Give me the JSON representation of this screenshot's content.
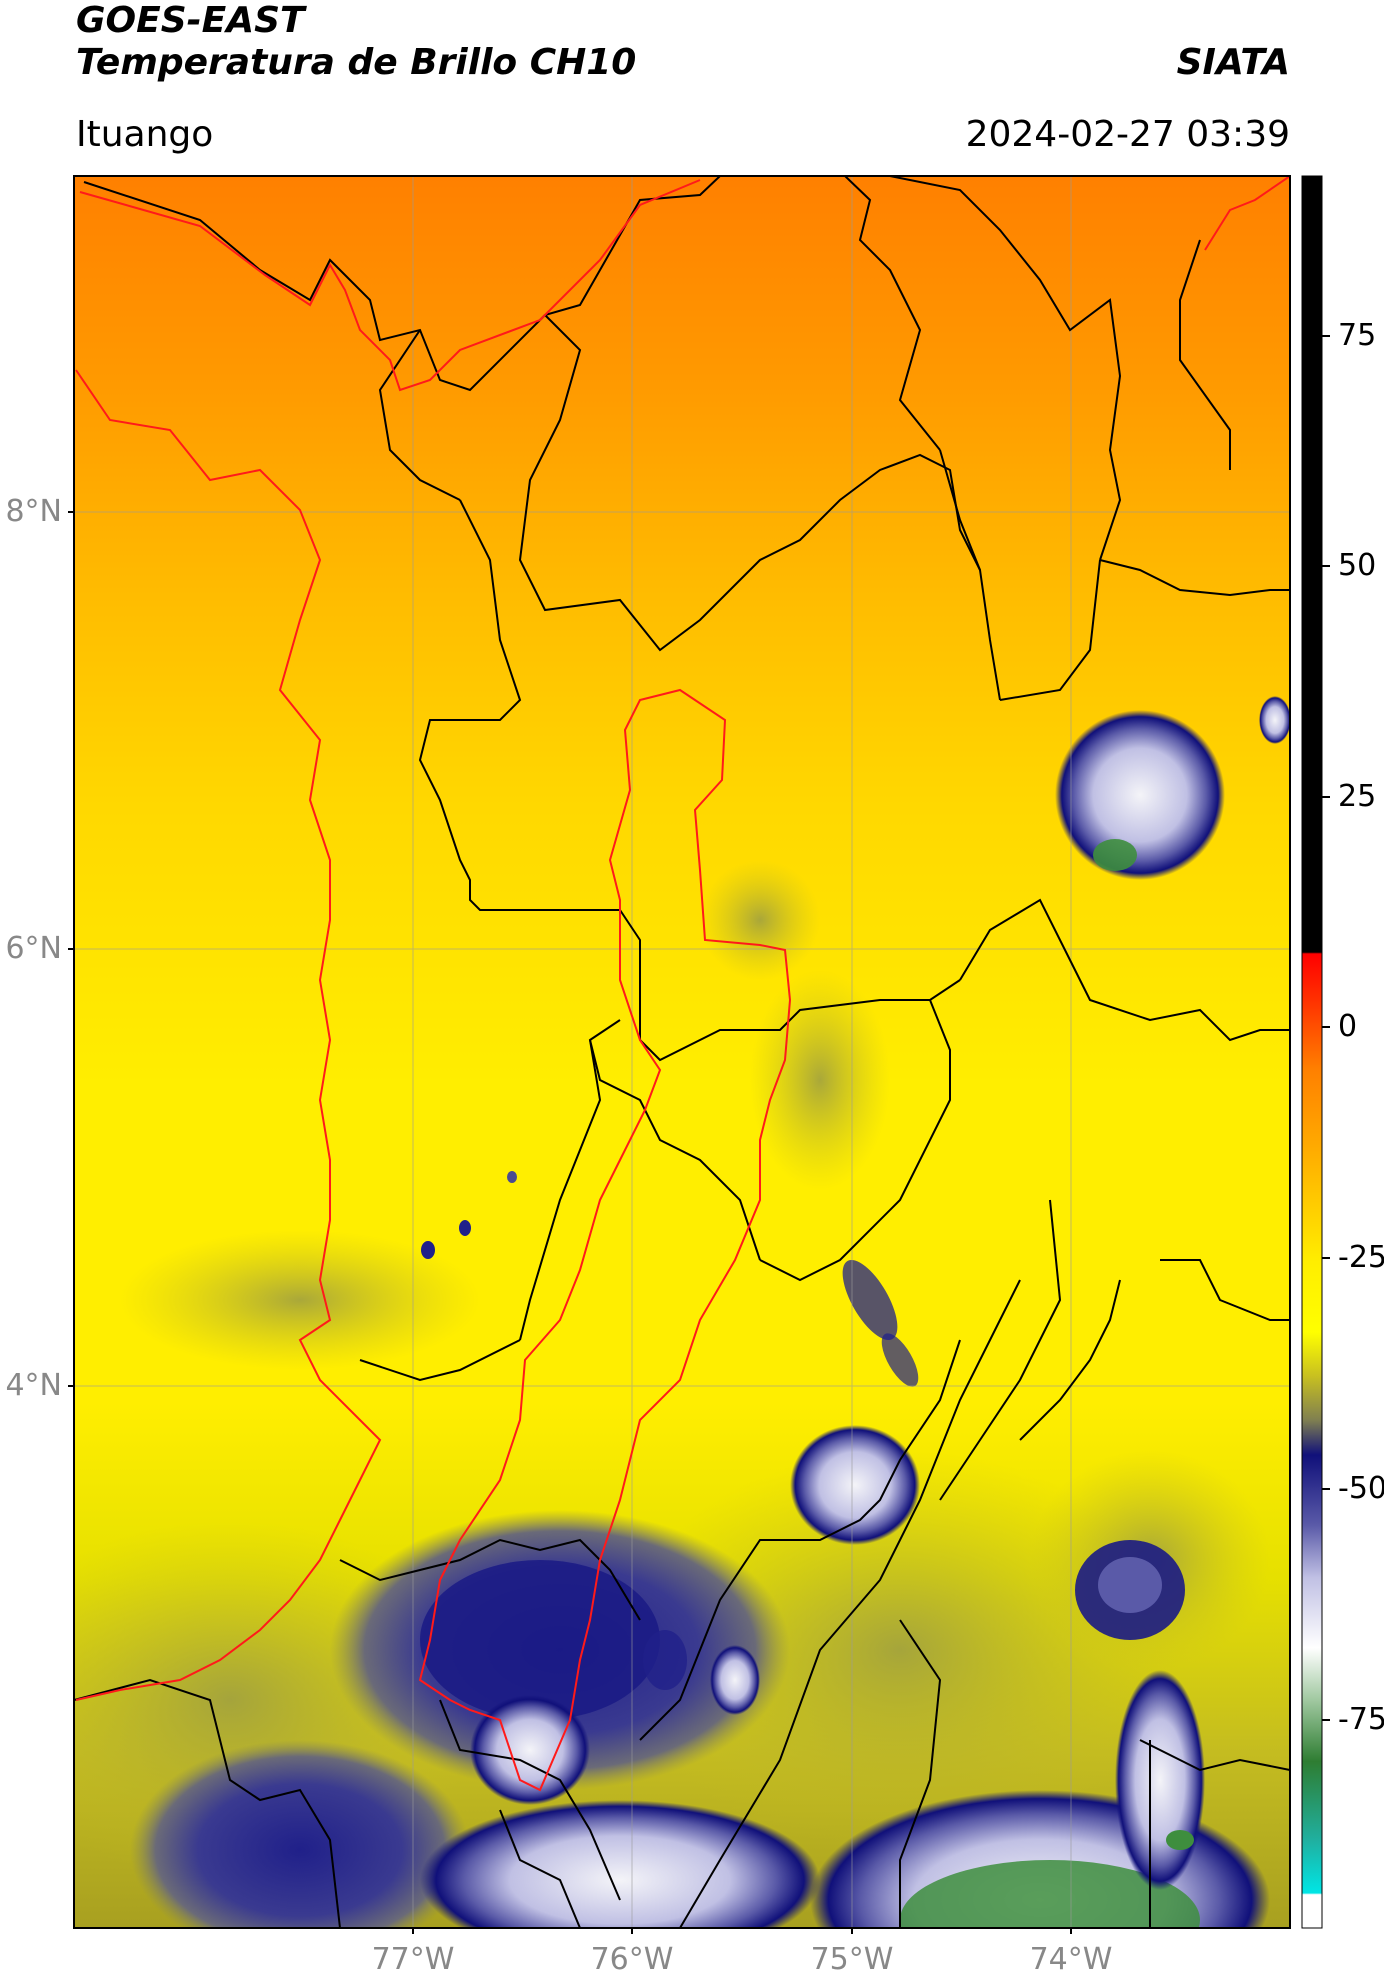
{
  "header": {
    "satellite": "GOES-EAST",
    "product": "Temperatura de Brillo CH10",
    "brand": "SIATA",
    "location": "Ituango",
    "timestamp": "2024-02-27 03:39"
  },
  "map": {
    "lat_labels": [
      "8°N",
      "6°N",
      "4°N"
    ],
    "lon_labels": [
      "77°W",
      "76°W",
      "75°W",
      "74°W"
    ],
    "colors": {
      "warm_orange": "#ff8c00",
      "mid_orange": "#ffb000",
      "yellow": "#ffe000",
      "olive": "#b8b020",
      "dark_blue": "#10107a",
      "light_purple": "#b8b8e0",
      "white": "#f4f4f8",
      "green": "#3e8e3e",
      "border_black": "#000000",
      "border_red": "#ff0000"
    }
  },
  "colorbar": {
    "ticks": [
      "75",
      "50",
      "25",
      "0",
      "-25",
      "-50",
      "-75"
    ],
    "colors": [
      "#000000",
      "#ff0000",
      "#ff8c00",
      "#ffff00",
      "#10107a",
      "#ffffff",
      "#2e7d32",
      "#00e5e5"
    ]
  }
}
